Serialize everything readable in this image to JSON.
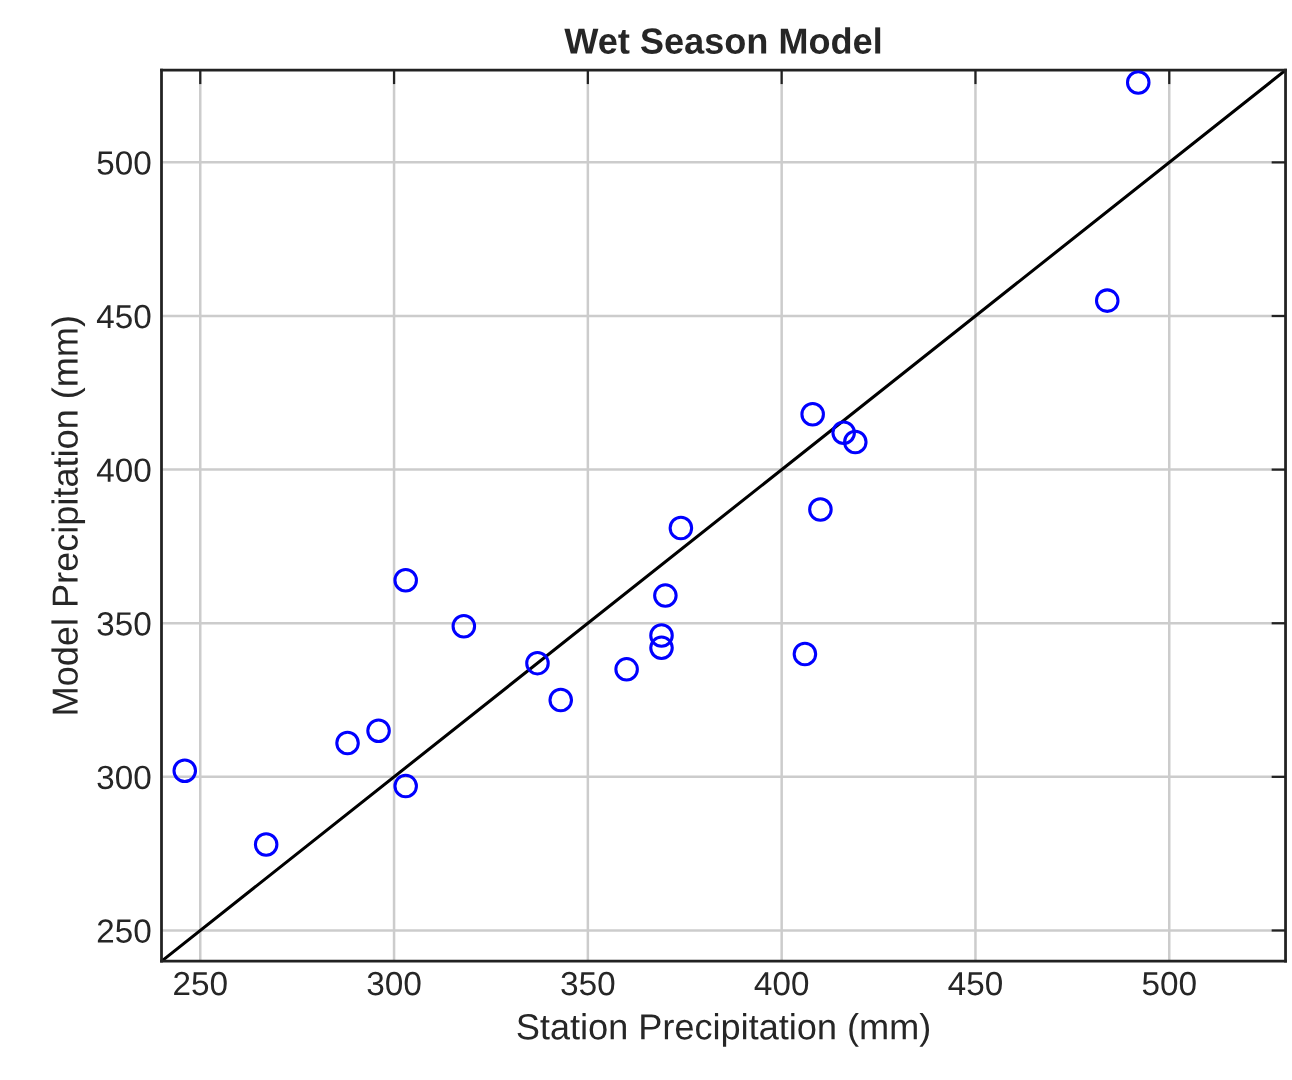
{
  "chart_data": {
    "type": "scatter",
    "title": "Wet Season Model",
    "xlabel": "Station Precipitation (mm)",
    "ylabel": "Model Precipitation (mm)",
    "xlim": [
      240,
      530
    ],
    "ylim": [
      240,
      530
    ],
    "xticks": [
      250,
      300,
      350,
      400,
      450,
      500
    ],
    "yticks": [
      250,
      300,
      350,
      400,
      450,
      500
    ],
    "grid": true,
    "marker": "circle",
    "series": [
      {
        "color": "#0000ff",
        "x": [
          246,
          267,
          288,
          296,
          303,
          303,
          318,
          337,
          343,
          360,
          369,
          369,
          370,
          374,
          406,
          408,
          410,
          416,
          419,
          484,
          492
        ],
        "values": [
          302,
          278,
          311,
          315,
          364,
          297,
          349,
          337,
          325,
          335,
          346,
          342,
          359,
          381,
          340,
          418,
          387,
          412,
          409,
          455,
          526
        ]
      },
      {
        "type": "line",
        "color": "#000000",
        "x": [
          240,
          530
        ],
        "values": [
          240,
          530
        ],
        "marker": "none"
      }
    ]
  }
}
